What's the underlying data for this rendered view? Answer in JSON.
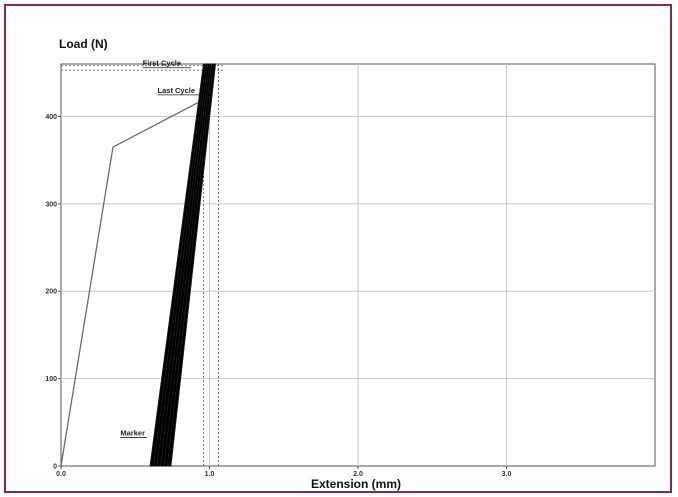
{
  "chart_data": {
    "type": "line",
    "title": "",
    "ylabel": "Load (N)",
    "xlabel": "Extension (mm)",
    "xlim": [
      0,
      4.0
    ],
    "ylim": [
      0,
      460
    ],
    "x_ticks": [
      0,
      1.0,
      2.0,
      3.0
    ],
    "x_tick_labels": [
      "0.0",
      "1.0",
      "2.0",
      "3.0"
    ],
    "y_ticks": [
      0,
      100,
      200,
      300,
      400
    ],
    "y_tick_labels": [
      "0",
      "100",
      "200",
      "300",
      "400"
    ],
    "grid": true,
    "legend": "none",
    "colors": {
      "frame_border": "#8a2a4a",
      "grid": "#c8c8c8",
      "line": "#6a6a6a",
      "cycles": "#000000"
    },
    "initial_loading": {
      "x": [
        0.0,
        0.35,
        0.97
      ],
      "y": [
        0,
        365,
        420
      ]
    },
    "cycles_band": {
      "bottom_left_x": 0.6,
      "bottom_right_x": 0.74,
      "top_left_x": 0.96,
      "top_right_x": 1.04,
      "top_y": 460
    },
    "annotations": [
      {
        "text": "First Cycle",
        "x": 0.55,
        "y": 458
      },
      {
        "text": "Last Cycle",
        "x": 0.65,
        "y": 427
      },
      {
        "text": "Marker",
        "x": 0.4,
        "y": 35
      }
    ],
    "reference_lines": {
      "horizontal_y": [
        458,
        453
      ],
      "vertical_x": [
        0.96,
        1.06
      ]
    }
  }
}
